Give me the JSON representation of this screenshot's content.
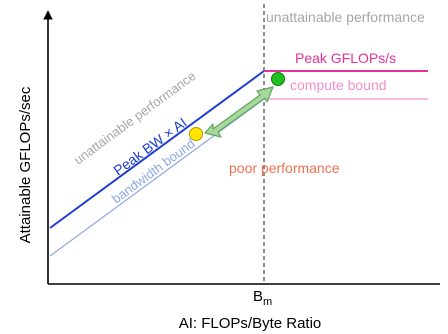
{
  "labels": {
    "unattainable_top_right": "unattainable performance",
    "unattainable_diagonal": "unattainable performance",
    "peak_gflops": "Peak GFLOPs/s",
    "compute_bound": "compute bound",
    "peak_bw": "Peak  BW × AI",
    "bandwidth_bound": "bandwidth bound",
    "poor_performance": "poor performance",
    "y_axis": "Attainable GFLOPs/sec",
    "x_axis": "AI: FLOPs/Byte Ratio",
    "bm_base": "B",
    "bm_sub": "m"
  },
  "colors": {
    "axis": "#000000",
    "peak_bw": "#1f3fd1",
    "bandwidth_bound": "#8fa6e6",
    "peak_gflops": "#e6319a",
    "compute_bound": "#f08fcc",
    "poor_performance": "#f07050",
    "unattainable": "#a6a6a6",
    "arrow_fill": "#a9d89c",
    "arrow_stroke": "#5aa85a",
    "point_yellow": "#ffe600",
    "point_green": "#20c020"
  }
}
